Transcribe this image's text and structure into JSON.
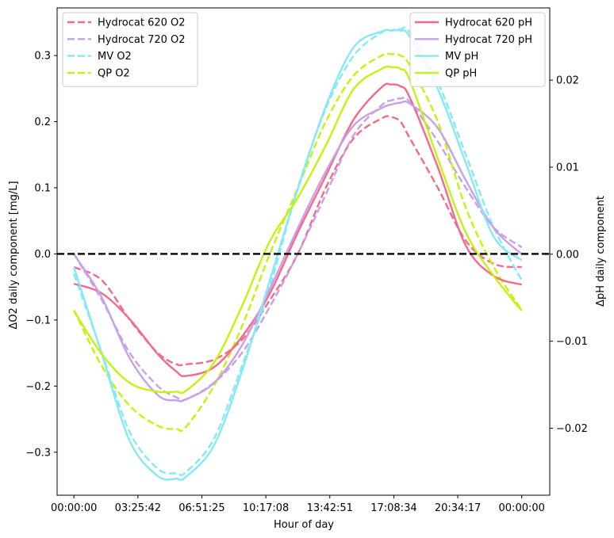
{
  "chart_data": {
    "type": "line",
    "xlabel": "Hour of day",
    "ylabel_left": "ΔO2 daily component [mg/L]",
    "ylabel_right": "ΔpH daily component",
    "x_domain_hours": [
      -0.9,
      25.5
    ],
    "x_ticks": [
      {
        "hour": 0,
        "label": "00:00:00"
      },
      {
        "hour": 3.4283,
        "label": "03:25:42"
      },
      {
        "hour": 6.8569,
        "label": "06:51:25"
      },
      {
        "hour": 10.2856,
        "label": "10:17:08"
      },
      {
        "hour": 13.7142,
        "label": "13:42:51"
      },
      {
        "hour": 17.1428,
        "label": "17:08:34"
      },
      {
        "hour": 20.5714,
        "label": "20:34:17"
      },
      {
        "hour": 24,
        "label": "00:00:00"
      }
    ],
    "ylim_left": [
      -0.365,
      0.372
    ],
    "yticks_left": [
      -0.3,
      -0.2,
      -0.1,
      0.0,
      0.1,
      0.2,
      0.3
    ],
    "ytick_labels_left": [
      "−0.3",
      "−0.2",
      "−0.1",
      "0.0",
      "0.1",
      "0.2",
      "0.3"
    ],
    "ylim_right": [
      -0.0277,
      0.0283
    ],
    "yticks_right": [
      -0.02,
      -0.01,
      0.0,
      0.01,
      0.02
    ],
    "ytick_labels_right": [
      "−0.02",
      "−0.01",
      "0.00",
      "0.01",
      "0.02"
    ],
    "zero_line": {
      "value": 0,
      "color": "#000000",
      "style": "dashed"
    },
    "legend_left": {
      "placement": "top-left",
      "entries": [
        "Hydrocat 620 O2",
        "Hydrocat 720 O2",
        "MV O2",
        "QP O2"
      ]
    },
    "legend_right": {
      "placement": "top-right",
      "entries": [
        "Hydrocat 620 pH",
        "Hydrocat 720 pH",
        "MV pH",
        "QP pH"
      ]
    },
    "x_hours": [
      0,
      1.5,
      3,
      4.5,
      5.5,
      6,
      7.5,
      9,
      10.5,
      12,
      13.5,
      15,
      16.5,
      17,
      17.5,
      18,
      19.5,
      21,
      22.5,
      24
    ],
    "series": [
      {
        "name": "Hydrocat 620 O2",
        "axis": "left",
        "style": "dashed",
        "color": "#f7698b",
        "y": [
          -0.02,
          -0.04,
          -0.1,
          -0.15,
          -0.167,
          -0.167,
          -0.16,
          -0.13,
          -0.07,
          0.0,
          0.1,
          0.175,
          0.205,
          0.207,
          0.2,
          0.175,
          0.1,
          0.02,
          -0.015,
          -0.02
        ]
      },
      {
        "name": "Hydrocat 720 O2",
        "axis": "left",
        "style": "dashed",
        "color": "#c8a0ea",
        "y": [
          0.0,
          -0.07,
          -0.15,
          -0.2,
          -0.217,
          -0.22,
          -0.195,
          -0.15,
          -0.08,
          0.0,
          0.09,
          0.18,
          0.225,
          0.232,
          0.235,
          0.23,
          0.17,
          0.1,
          0.04,
          0.01
        ]
      },
      {
        "name": "MV O2",
        "axis": "left",
        "style": "dashed",
        "color": "#84e9f7",
        "y": [
          -0.03,
          -0.15,
          -0.27,
          -0.325,
          -0.332,
          -0.33,
          -0.28,
          -0.17,
          -0.05,
          0.1,
          0.22,
          0.3,
          0.335,
          0.338,
          0.34,
          0.335,
          0.26,
          0.15,
          0.04,
          -0.04
        ]
      },
      {
        "name": "QP O2",
        "axis": "left",
        "style": "dashed",
        "color": "#c6f20f",
        "y": [
          -0.085,
          -0.17,
          -0.23,
          -0.26,
          -0.265,
          -0.262,
          -0.2,
          -0.11,
          0.0,
          0.1,
          0.2,
          0.27,
          0.3,
          0.302,
          0.3,
          0.285,
          0.2,
          0.07,
          -0.02,
          -0.085
        ]
      },
      {
        "name": "Hydrocat 620 pH",
        "axis": "right",
        "style": "solid",
        "color": "#f7698b",
        "y": [
          -0.0034,
          -0.0045,
          -0.0075,
          -0.0115,
          -0.0135,
          -0.014,
          -0.013,
          -0.0095,
          -0.0045,
          0.0025,
          0.009,
          0.0155,
          0.0192,
          0.0195,
          0.0193,
          0.018,
          0.01,
          0.001,
          -0.0025,
          -0.0035
        ]
      },
      {
        "name": "Hydrocat 720 pH",
        "axis": "right",
        "style": "solid",
        "color": "#c8a0ea",
        "y": [
          0.0,
          -0.005,
          -0.012,
          -0.0162,
          -0.0168,
          -0.0167,
          -0.0148,
          -0.0105,
          -0.004,
          0.003,
          0.0095,
          0.0148,
          0.0168,
          0.0172,
          0.0174,
          0.0173,
          0.0145,
          0.0085,
          0.003,
          0.0
        ]
      },
      {
        "name": "MV pH",
        "axis": "right",
        "style": "solid",
        "color": "#84e9f7",
        "y": [
          -0.0015,
          -0.0115,
          -0.0215,
          -0.0255,
          -0.0258,
          -0.0256,
          -0.022,
          -0.0135,
          -0.003,
          0.0075,
          0.017,
          0.0238,
          0.0256,
          0.0257,
          0.0257,
          0.025,
          0.019,
          0.0105,
          0.002,
          -0.0007
        ]
      },
      {
        "name": "QP pH",
        "axis": "right",
        "style": "solid",
        "color": "#c6f20f",
        "y": [
          -0.0065,
          -0.0115,
          -0.0148,
          -0.0158,
          -0.0158,
          -0.0157,
          -0.0125,
          -0.006,
          0.0015,
          0.0065,
          0.0125,
          0.019,
          0.0213,
          0.0215,
          0.0213,
          0.02,
          0.011,
          0.0025,
          -0.0025,
          -0.0065
        ]
      }
    ]
  }
}
